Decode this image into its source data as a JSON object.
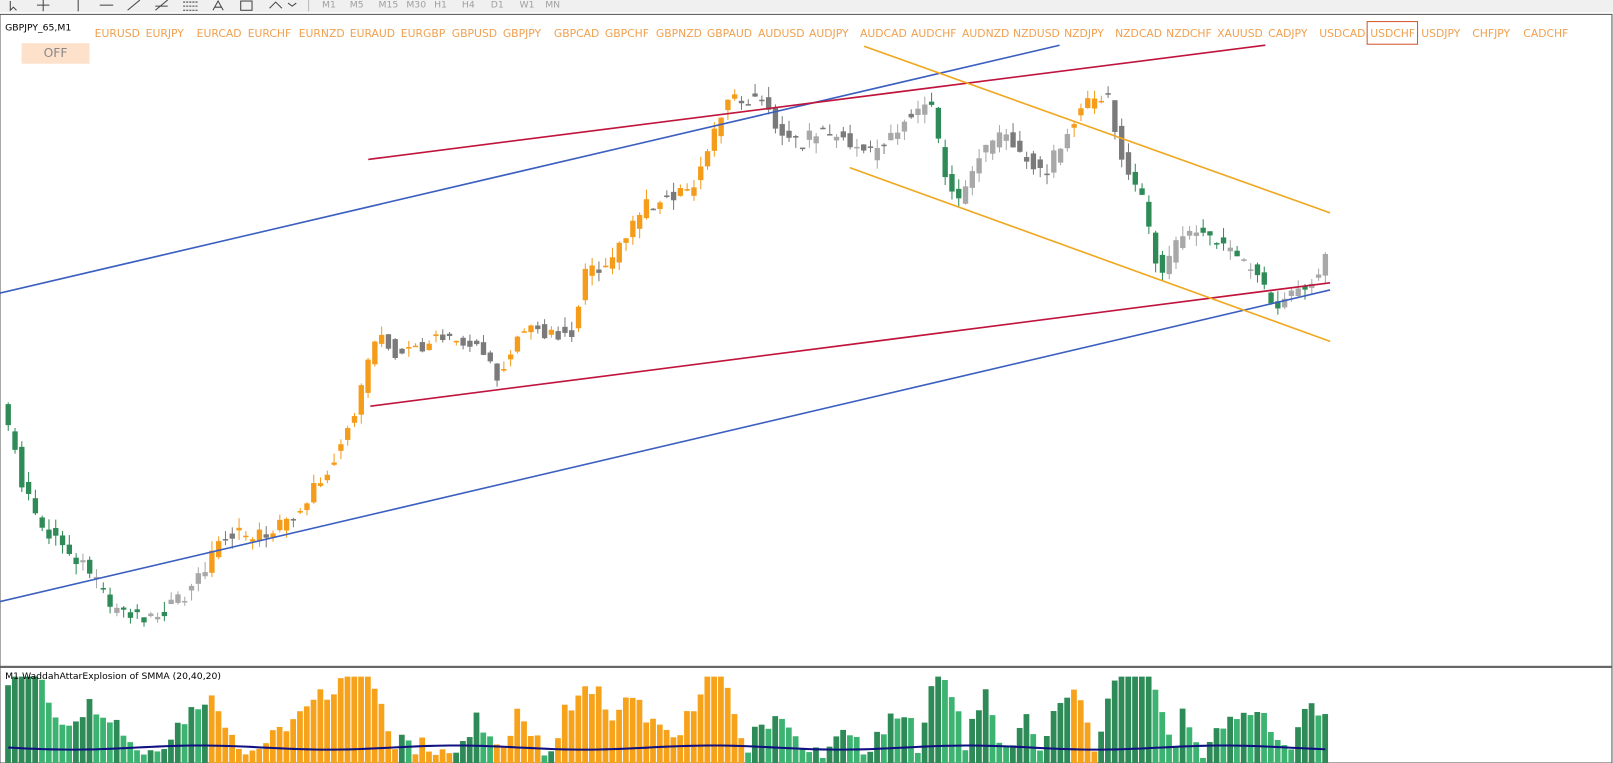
{
  "toolbar": {
    "timeframes": [
      "M1",
      "M5",
      "M15",
      "M30",
      "H1",
      "H4",
      "D1",
      "W1",
      "MN"
    ]
  },
  "chart": {
    "symbol": "GBPJPY_65,M1",
    "button": "OFF",
    "symbols": [
      "EURUSD",
      "EURJPY",
      "EURCAD",
      "EURCHF",
      "EURNZD",
      "EURAUD",
      "EURGBP",
      "GBPUSD",
      "GBPJPY",
      "GBPCAD",
      "GBPCHF",
      "GBPNZD",
      "GBPAUD",
      "AUDUSD",
      "AUDJPY",
      "AUDCAD",
      "AUDCHF",
      "AUDNZD",
      "NZDUSD",
      "NZDJPY",
      "NZDCAD",
      "NZDCHF",
      "XAUUSD",
      "CADJPY",
      "USDCAD",
      "USDCHF",
      "USDJPY",
      "CHFJPY",
      "CADCHF"
    ]
  },
  "indicator": {
    "title": "M1 WaddahAttarExplosion of SMMA (20,40,20)"
  }
}
